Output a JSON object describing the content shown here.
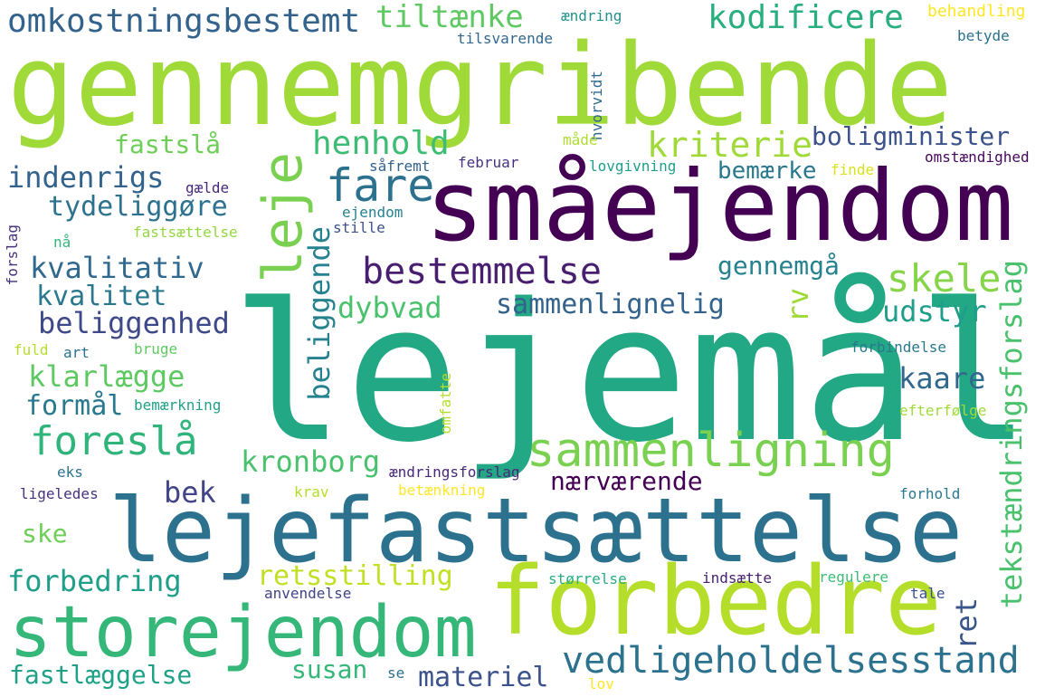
{
  "words": [
    {
      "text": "lejemål",
      "color": "#22a884"
    },
    {
      "text": "gennemgribende",
      "color": "#a0da39"
    },
    {
      "text": "småejendom",
      "color": "#440154"
    },
    {
      "text": "lejefastsættelse",
      "color": "#2c728e"
    },
    {
      "text": "forbedre",
      "color": "#b5de2b"
    },
    {
      "text": "storejendom",
      "color": "#35b779"
    },
    {
      "text": "sammenligning",
      "color": "#7ad151"
    },
    {
      "text": "omkostningsbestemt",
      "color": "#33638d"
    },
    {
      "text": "tiltænke",
      "color": "#5ec962"
    },
    {
      "text": "kodificere",
      "color": "#29af7f"
    },
    {
      "text": "leje",
      "color": "#7ad151"
    },
    {
      "text": "fare",
      "color": "#2c728e"
    },
    {
      "text": "bestemmelse",
      "color": "#481f70"
    },
    {
      "text": "henhold",
      "color": "#3dbc74"
    },
    {
      "text": "kriterie",
      "color": "#a0da39"
    },
    {
      "text": "boligminister",
      "color": "#3b528b"
    },
    {
      "text": "fastslå",
      "color": "#6ece58"
    },
    {
      "text": "indenrigs",
      "color": "#33638d"
    },
    {
      "text": "tydeliggøre",
      "color": "#2c728e"
    },
    {
      "text": "kvalitativ",
      "color": "#31688e"
    },
    {
      "text": "kvalitet",
      "color": "#2a788e"
    },
    {
      "text": "beliggenhed",
      "color": "#3e4989"
    },
    {
      "text": "klarlægge",
      "color": "#5ec962"
    },
    {
      "text": "formål",
      "color": "#2a788e"
    },
    {
      "text": "foreslå",
      "color": "#2fb47c"
    },
    {
      "text": "skele",
      "color": "#86d549"
    },
    {
      "text": "gennemgå",
      "color": "#26828e"
    },
    {
      "text": "bemærke",
      "color": "#2a788e"
    },
    {
      "text": "dybvad",
      "color": "#4ac16d"
    },
    {
      "text": "sammenlignelig",
      "color": "#33638d"
    },
    {
      "text": "udstyr",
      "color": "#1f9e89"
    },
    {
      "text": "kaare",
      "color": "#31688e"
    },
    {
      "text": "kronborg",
      "color": "#4ac16d"
    },
    {
      "text": "bek",
      "color": "#414487"
    },
    {
      "text": "nærværende",
      "color": "#440154"
    },
    {
      "text": "ske",
      "color": "#6ece58"
    },
    {
      "text": "forbedring",
      "color": "#1f9e89"
    },
    {
      "text": "retsstilling",
      "color": "#c2df23"
    },
    {
      "text": "vedligeholdelsesstand",
      "color": "#2c728e"
    },
    {
      "text": "fastlæggelse",
      "color": "#1fa188"
    },
    {
      "text": "susan",
      "color": "#35b779"
    },
    {
      "text": "materiel",
      "color": "#3b528b"
    },
    {
      "text": "beliggende",
      "color": "#26828e"
    },
    {
      "text": "tekstændringsforslag",
      "color": "#4ac16d"
    },
    {
      "text": "ret",
      "color": "#39568c"
    },
    {
      "text": "rv",
      "color": "#a0da39"
    },
    {
      "text": "forslag",
      "color": "#46327e"
    },
    {
      "text": "ændring",
      "color": "#21918c"
    },
    {
      "text": "behandling",
      "color": "#fde725"
    },
    {
      "text": "tilsvarende",
      "color": "#31688e"
    },
    {
      "text": "betyde",
      "color": "#2c728e"
    },
    {
      "text": "hvorvidt",
      "color": "#31688e"
    },
    {
      "text": "måde",
      "color": "#addc30"
    },
    {
      "text": "såfremt",
      "color": "#33638d"
    },
    {
      "text": "februar",
      "color": "#46327e"
    },
    {
      "text": "lovgivning",
      "color": "#1f9e89"
    },
    {
      "text": "omstændighed",
      "color": "#46085c"
    },
    {
      "text": "finde",
      "color": "#d8e219"
    },
    {
      "text": "gælde",
      "color": "#482878"
    },
    {
      "text": "ejendom",
      "color": "#26828e"
    },
    {
      "text": "stille",
      "color": "#3b528b"
    },
    {
      "text": "fastsættelse",
      "color": "#93d741"
    },
    {
      "text": "nå",
      "color": "#35b779"
    },
    {
      "text": "fuld",
      "color": "#b5de2b"
    },
    {
      "text": "art",
      "color": "#2c728e"
    },
    {
      "text": "bruge",
      "color": "#5ec962"
    },
    {
      "text": "forbindelse",
      "color": "#2a788e"
    },
    {
      "text": "omfatte",
      "color": "#b5de2b"
    },
    {
      "text": "bemærkning",
      "color": "#1fa188"
    },
    {
      "text": "efterfølge",
      "color": "#a0da39"
    },
    {
      "text": "eks",
      "color": "#2c728e"
    },
    {
      "text": "ændringsforslag",
      "color": "#482878"
    },
    {
      "text": "ligeledes",
      "color": "#46327e"
    },
    {
      "text": "krav",
      "color": "#b5de2b"
    },
    {
      "text": "betænkning",
      "color": "#fde725"
    },
    {
      "text": "forhold",
      "color": "#2a788e"
    },
    {
      "text": "størrelse",
      "color": "#27ad81"
    },
    {
      "text": "indsætte",
      "color": "#481f70"
    },
    {
      "text": "regulere",
      "color": "#3dbc74"
    },
    {
      "text": "anvendelse",
      "color": "#414487"
    },
    {
      "text": "tale",
      "color": "#3b528b"
    },
    {
      "text": "se",
      "color": "#2c728e"
    },
    {
      "text": "lov",
      "color": "#fde725"
    }
  ]
}
